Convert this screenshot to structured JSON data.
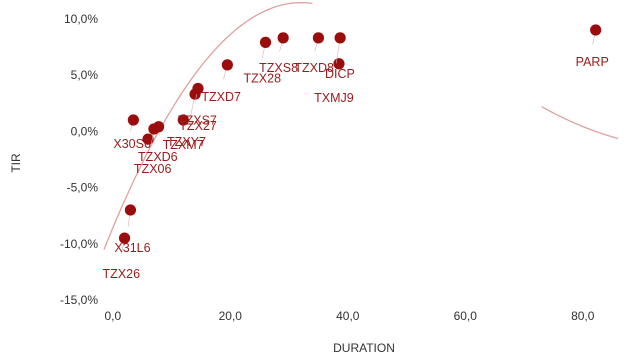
{
  "chart_data": {
    "type": "scatter",
    "title": "",
    "xlabel": "DURATION",
    "ylabel": "TIR",
    "xlim": [
      -1.5,
      86
    ],
    "ylim": [
      -15,
      10.6
    ],
    "x_ticks": [
      0,
      20,
      40,
      60,
      80
    ],
    "x_tick_labels": [
      "0,0",
      "20,0",
      "40,0",
      "60,0",
      "80,0"
    ],
    "y_ticks": [
      10,
      5,
      0,
      -5,
      -10,
      -15
    ],
    "y_tick_labels": [
      "10,0%",
      "5,0%",
      "0,0%",
      "-5,0%",
      "-10,0%",
      "-15,0%"
    ],
    "grid": false,
    "point_color": "#9b0c0c",
    "label_color": "#9b1b1b",
    "trend_color": "#e0a0a0",
    "trendline": {
      "type": "quadratic",
      "segments": [
        {
          "x": [
            -1.5,
            34
          ],
          "coef": [
            -8.6,
            1.25,
            -0.0195
          ]
        },
        {
          "x": [
            73,
            86
          ],
          "coef": [
            54.5,
            -1.14,
            0.0058
          ]
        }
      ]
    },
    "points": [
      {
        "x": 2.0,
        "y": -9.5,
        "label": "TZX26",
        "dx": -22,
        "dy": 40
      },
      {
        "x": 3.0,
        "y": -7.0,
        "label": "X31L6",
        "dx": -16,
        "dy": 42
      },
      {
        "x": 3.5,
        "y": 1.0,
        "label": "X30S6",
        "dx": -20,
        "dy": 28
      },
      {
        "x": 6.0,
        "y": -0.7,
        "label": "TZXD6",
        "dx": -10,
        "dy": 22
      },
      {
        "x": 7.0,
        "y": 0.2,
        "label": "TZX06",
        "dx": -20,
        "dy": 44
      },
      {
        "x": 7.8,
        "y": 0.4,
        "label": "TZXM7",
        "dx": 4,
        "dy": 22
      },
      {
        "x": 12.0,
        "y": 1.0,
        "label": "TZX27",
        "dx": -4,
        "dy": 10
      },
      {
        "x": 14.0,
        "y": 3.3,
        "label": "TZXY7",
        "dx": -28,
        "dy": 52
      },
      {
        "x": 14.5,
        "y": 3.8,
        "label": "TZXS7",
        "dx": -20,
        "dy": 36
      },
      {
        "x": 19.5,
        "y": 5.9,
        "label": "TZXD7",
        "dx": -26,
        "dy": 36
      },
      {
        "x": 26.0,
        "y": 7.9,
        "label": "TZX28",
        "dx": -22,
        "dy": 40
      },
      {
        "x": 29.0,
        "y": 8.3,
        "label": "TZXS8",
        "dx": -24,
        "dy": 34
      },
      {
        "x": 35.0,
        "y": 8.3,
        "label": "TZXD8",
        "dx": -24,
        "dy": 34
      },
      {
        "x": 38.5,
        "y": 6.0,
        "label": "DICP",
        "dx": -14,
        "dy": 14
      },
      {
        "x": 38.7,
        "y": 8.3,
        "label": "TXMJ9",
        "dx": -26,
        "dy": 64
      },
      {
        "x": 82.2,
        "y": 9.0,
        "label": "PARP",
        "dx": -20,
        "dy": 36
      }
    ]
  }
}
